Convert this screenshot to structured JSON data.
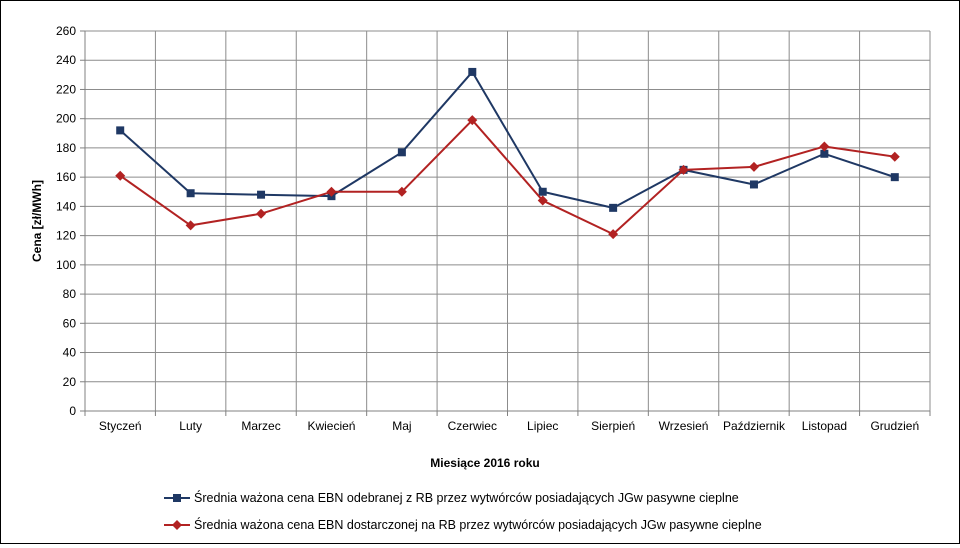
{
  "chart_data": {
    "type": "line",
    "xlabel": "Miesiące 2016  roku",
    "ylabel": "Cena [zł/MWh]",
    "ylim": [
      0,
      260
    ],
    "yticks": [
      0,
      20,
      40,
      60,
      80,
      100,
      120,
      140,
      160,
      180,
      200,
      220,
      240,
      260
    ],
    "grid": true,
    "legend_position": "bottom",
    "categories": [
      "Styczeń",
      "Luty",
      "Marzec",
      "Kwiecień",
      "Maj",
      "Czerwiec",
      "Lipiec",
      "Sierpień",
      "Wrzesień",
      "Październik",
      "Listopad",
      "Grudzień"
    ],
    "series": [
      {
        "name": "Średnia ważona cena EBN odebranej z RB przez wytwórców posiadających JGw pasywne cieplne",
        "color": "#1f3864",
        "marker": "square",
        "values": [
          192,
          149,
          148,
          147,
          177,
          232,
          150,
          139,
          165,
          155,
          176,
          160
        ]
      },
      {
        "name": "Średnia ważona cena EBN dostarczonej na RB przez wytwórców posiadających JGw pasywne cieplne",
        "color": "#b22222",
        "marker": "diamond",
        "values": [
          161,
          127,
          135,
          150,
          150,
          199,
          144,
          121,
          165,
          167,
          181,
          174
        ]
      }
    ]
  }
}
